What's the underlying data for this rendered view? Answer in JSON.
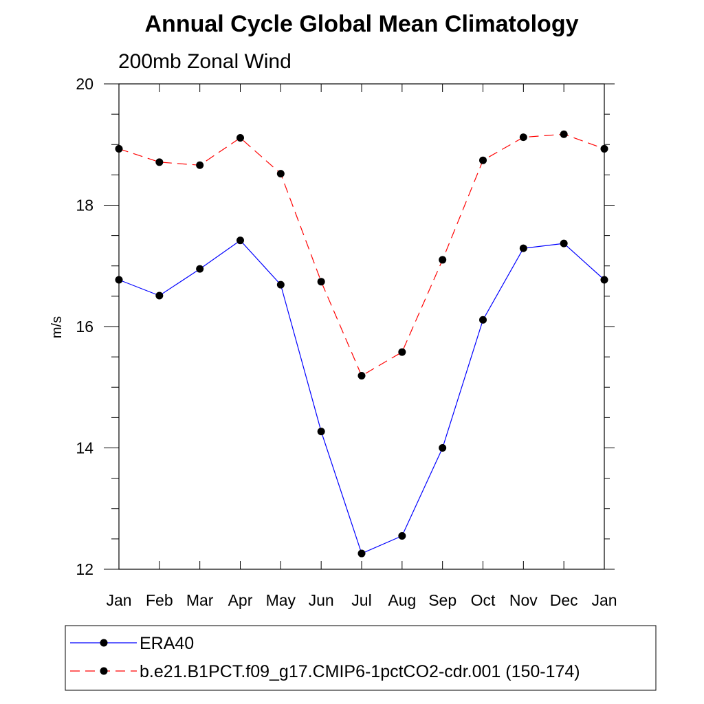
{
  "chart_data": {
    "type": "line",
    "title": "Annual Cycle Global Mean Climatology",
    "subtitle": "200mb Zonal Wind",
    "xlabel": "",
    "ylabel": "m/s",
    "categories": [
      "Jan",
      "Feb",
      "Mar",
      "Apr",
      "May",
      "Jun",
      "Jul",
      "Aug",
      "Sep",
      "Oct",
      "Nov",
      "Dec",
      "Jan"
    ],
    "ylim": [
      12,
      20
    ],
    "yticks": [
      "12",
      "14",
      "16",
      "18",
      "20"
    ],
    "series": [
      {
        "name": "ERA40",
        "color": "#0000ff",
        "dash": "solid",
        "values": [
          16.77,
          16.51,
          16.95,
          17.42,
          16.69,
          14.27,
          12.26,
          12.55,
          14.0,
          16.11,
          17.29,
          17.37,
          16.77
        ]
      },
      {
        "name": "b.e21.B1PCT.f09_g17.CMIP6-1pctCO2-cdr.001 (150-174)",
        "color": "#ff0000",
        "dash": "dashed",
        "values": [
          18.93,
          18.71,
          18.66,
          19.11,
          18.52,
          16.74,
          15.19,
          15.58,
          17.1,
          18.74,
          19.12,
          19.17,
          18.93
        ]
      }
    ]
  }
}
